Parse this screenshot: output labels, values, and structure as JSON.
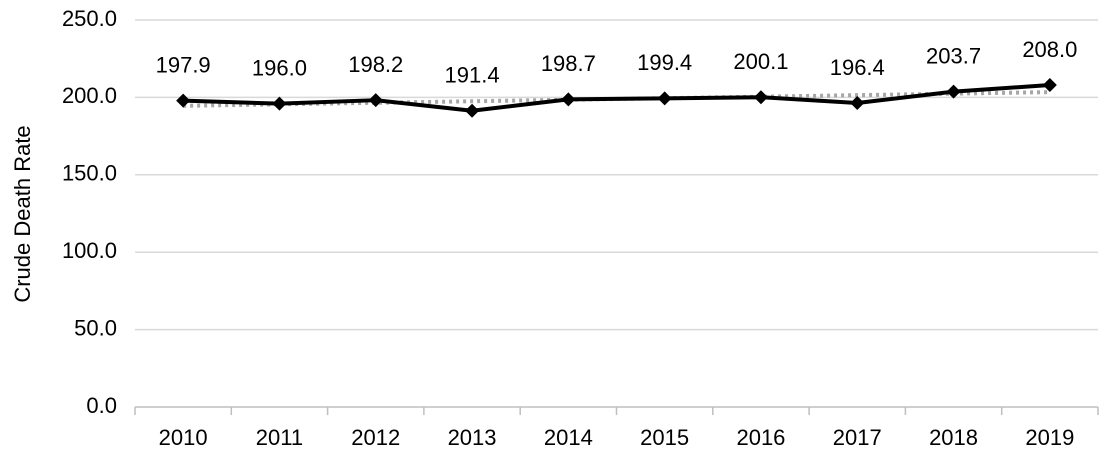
{
  "chart_data": {
    "type": "line",
    "y_label": "Crude Death Rate",
    "categories": [
      "2010",
      "2011",
      "2012",
      "2013",
      "2014",
      "2015",
      "2016",
      "2017",
      "2018",
      "2019"
    ],
    "series": [
      {
        "color": "#000000",
        "marker": "diamond",
        "values": [
          197.9,
          196.0,
          198.2,
          191.4,
          198.7,
          199.4,
          200.1,
          196.4,
          203.7,
          208.0
        ],
        "value_labels": [
          "197.9",
          "196.0",
          "198.2",
          "191.4",
          "198.7",
          "199.4",
          "200.1",
          "196.4",
          "203.7",
          "208.0"
        ]
      }
    ],
    "trendline": "linear",
    "trendline_color": "#a6a6a6",
    "ylim": [
      0,
      250
    ],
    "yticks": [
      {
        "value": 0,
        "label": "0.0"
      },
      {
        "value": 50,
        "label": "50.0"
      },
      {
        "value": 100,
        "label": "100.0"
      },
      {
        "value": 150,
        "label": "150.0"
      },
      {
        "value": 200,
        "label": "200.0"
      },
      {
        "value": 250,
        "label": "250.0"
      }
    ],
    "grid": true
  }
}
